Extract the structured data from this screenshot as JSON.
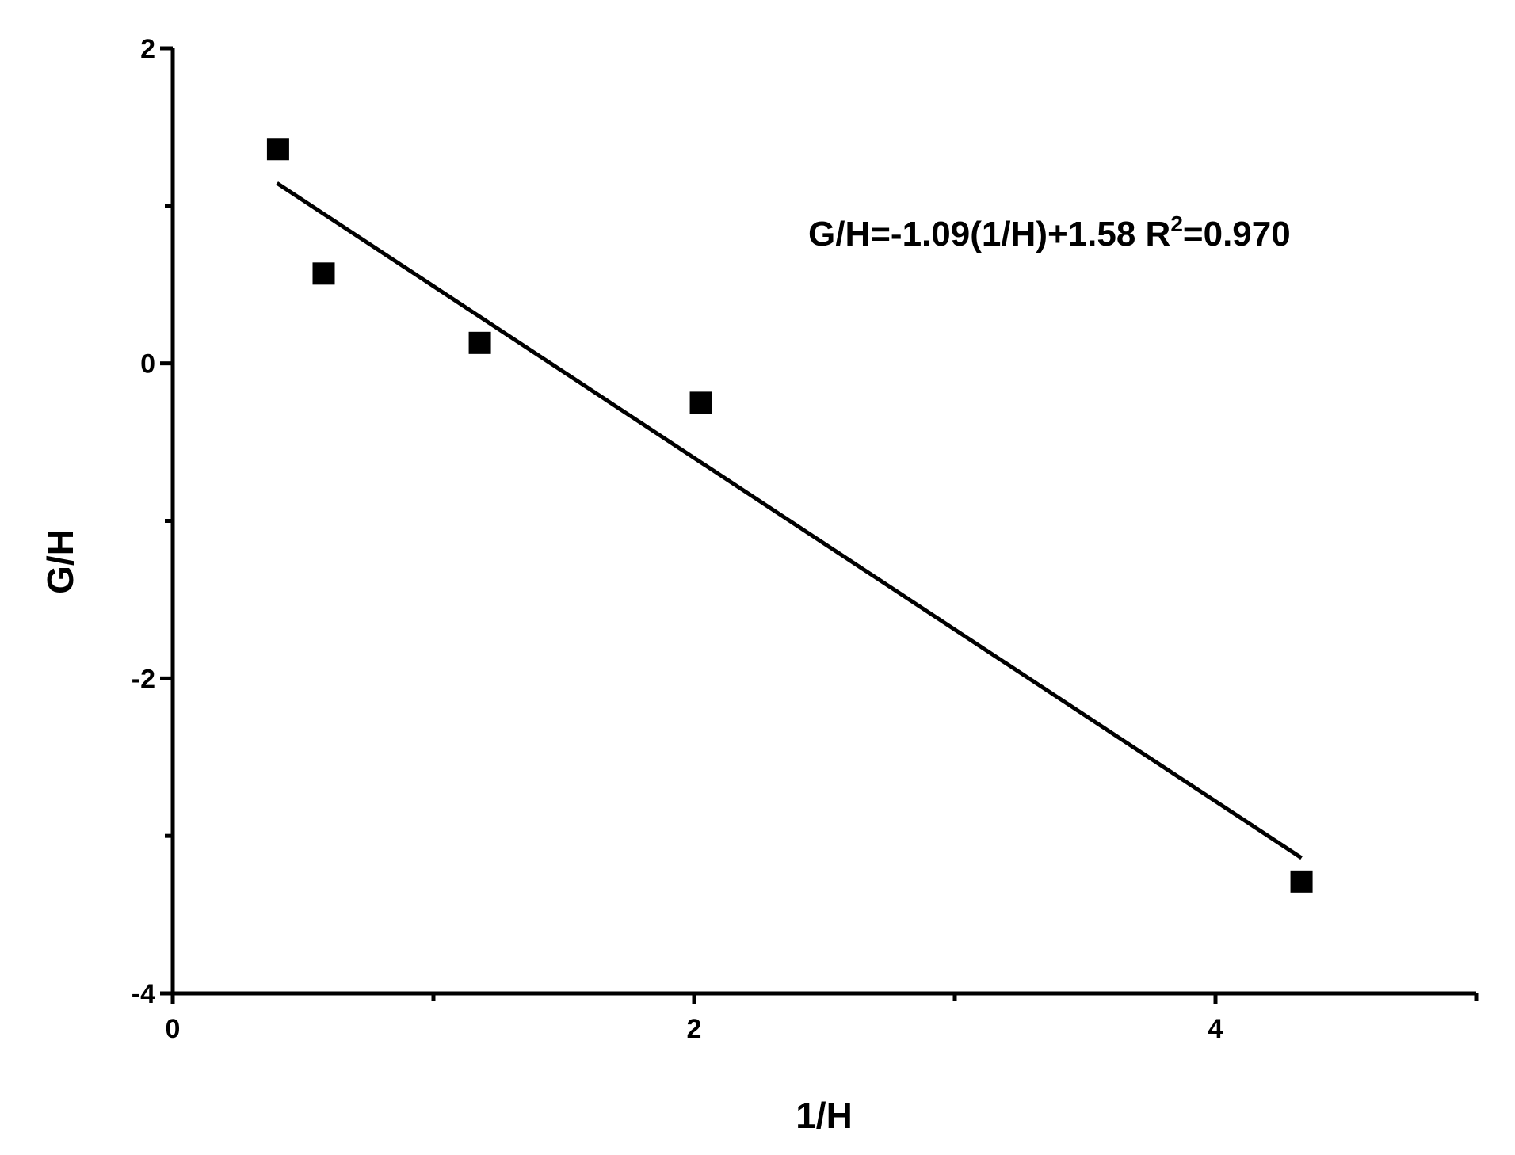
{
  "chart_data": {
    "type": "scatter",
    "xlabel": "1/H",
    "ylabel": "G/H",
    "annotation": {
      "text": "G/H=-1.09(1/H)+1.58 R",
      "superscript": "2",
      "suffix": "=0.970"
    },
    "xlim": [
      0,
      5
    ],
    "xticks": [
      0,
      2,
      4
    ],
    "xminor_ticks": [
      1,
      3,
      5
    ],
    "ylim": [
      -4,
      2
    ],
    "yticks": [
      -4,
      -2,
      0,
      2
    ],
    "yminor_ticks": [
      -3,
      -1,
      1
    ],
    "series": [
      {
        "type": "scatter",
        "marker": "square",
        "color": "#000000",
        "x": [
          0.404,
          0.579,
          1.178,
          2.026,
          4.33
        ],
        "values": [
          1.36,
          0.57,
          0.13,
          -0.25,
          -3.29
        ]
      },
      {
        "type": "line",
        "color": "#000000",
        "x": [
          0.4,
          4.33
        ],
        "values": [
          1.144,
          -3.14
        ]
      }
    ]
  }
}
